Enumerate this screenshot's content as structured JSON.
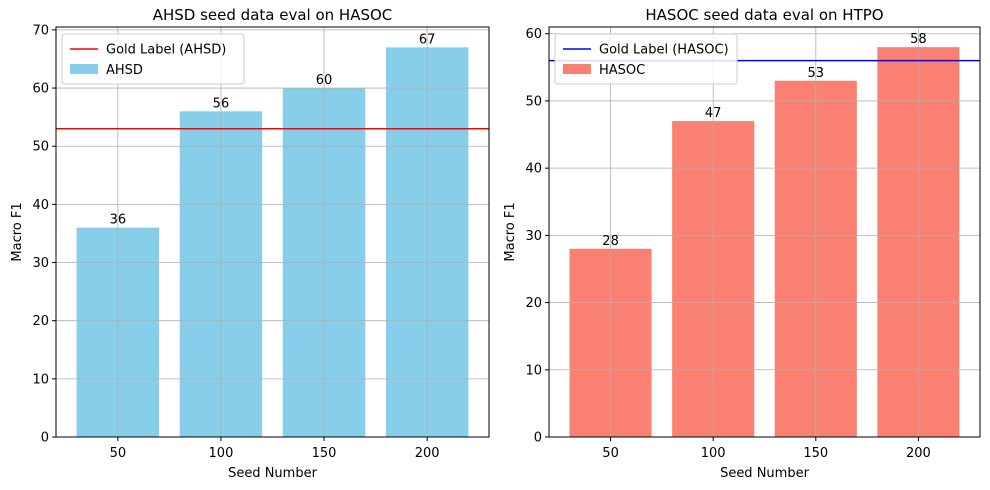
{
  "chart_data": [
    {
      "type": "bar",
      "title": "AHSD seed data eval on HASOC",
      "xlabel": "Seed Number",
      "ylabel": "Macro F1",
      "categories": [
        "50",
        "100",
        "150",
        "200"
      ],
      "values": [
        36,
        56,
        60,
        67
      ],
      "value_labels": [
        "36",
        "56",
        "60",
        "67"
      ],
      "ylim": [
        0,
        70.5
      ],
      "yticks": [
        0,
        10,
        20,
        30,
        40,
        50,
        60,
        70
      ],
      "ytick_labels": [
        "0",
        "10",
        "20",
        "30",
        "40",
        "50",
        "60",
        "70"
      ],
      "bar_color": "#87ceeb",
      "gold_value": 53,
      "gold_color": "#ff0000",
      "grid": true,
      "legend_position": "top-left",
      "legend": [
        {
          "kind": "line",
          "label": "Gold Label (AHSD)"
        },
        {
          "kind": "bar",
          "label": "AHSD"
        }
      ]
    },
    {
      "type": "bar",
      "title": "HASOC seed data eval on HTPO",
      "xlabel": "Seed Number",
      "ylabel": "Macro F1",
      "categories": [
        "50",
        "100",
        "150",
        "200"
      ],
      "values": [
        28,
        47,
        53,
        58
      ],
      "value_labels": [
        "28",
        "47",
        "53",
        "58"
      ],
      "ylim": [
        0,
        61
      ],
      "yticks": [
        0,
        10,
        20,
        30,
        40,
        50,
        60
      ],
      "ytick_labels": [
        "0",
        "10",
        "20",
        "30",
        "40",
        "50",
        "60"
      ],
      "bar_color": "#fa8072",
      "gold_value": 56,
      "gold_color": "#0000ff",
      "grid": true,
      "legend_position": "top-left",
      "legend": [
        {
          "kind": "line",
          "label": "Gold Label (HASOC)"
        },
        {
          "kind": "bar",
          "label": "HASOC"
        }
      ]
    }
  ]
}
